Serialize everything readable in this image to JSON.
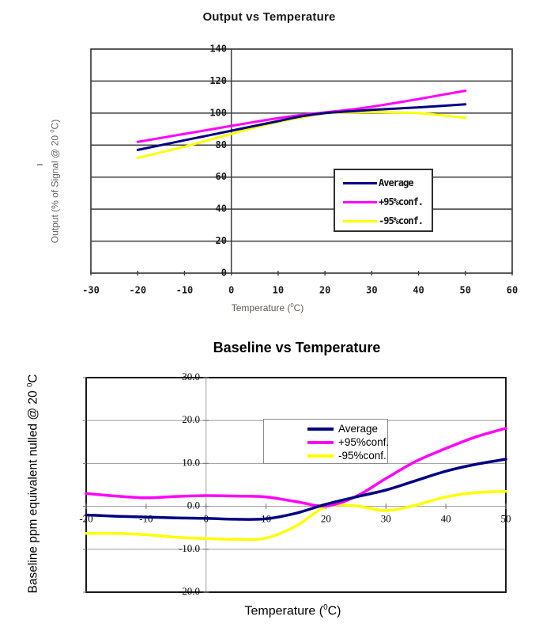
{
  "chart_data": [
    {
      "type": "line",
      "title": "Output vs Temperature",
      "xlabel": {
        "pre": "Temperature (",
        "sup": "0",
        "post": "C)"
      },
      "ylabel": {
        "pre": "Output (% of Signal @ 20 ",
        "sup": "0",
        "post": "C)"
      },
      "xlim": [
        -30,
        60
      ],
      "ylim": [
        0,
        140
      ],
      "xticks": [
        "-30",
        "-20",
        "-10",
        "0",
        "10",
        "20",
        "30",
        "40",
        "50",
        "60"
      ],
      "yticks": [
        "0",
        "20",
        "40",
        "60",
        "80",
        "100",
        "120",
        "140"
      ],
      "grid": "horizontal",
      "legend_position": "inside-right",
      "x": [
        -20,
        -15,
        -10,
        -5,
        0,
        5,
        10,
        15,
        20,
        25,
        30,
        35,
        40,
        45,
        50
      ],
      "series": [
        {
          "name": "Average",
          "color": "#000080",
          "values": [
            77,
            80,
            83,
            86,
            89,
            92,
            95,
            98,
            100,
            101,
            102,
            102.8,
            103.6,
            104.5,
            105.5
          ]
        },
        {
          "name": "+95%conf.",
          "color": "#ff00ff",
          "values": [
            82,
            84.5,
            87,
            89.5,
            92,
            94.5,
            96.8,
            98.8,
            100.4,
            102,
            104,
            106.3,
            108.8,
            111.4,
            114
          ]
        },
        {
          "name": "-95%conf.",
          "color": "#ffff00",
          "values": [
            72,
            75.5,
            79,
            83,
            87,
            91,
            94.5,
            97.3,
            99.8,
            100.4,
            100.6,
            100.4,
            100,
            98.6,
            97
          ]
        }
      ]
    },
    {
      "type": "line",
      "title": "Baseline vs Temperature",
      "xlabel": {
        "pre": "Temperature (",
        "sup": "0",
        "post": "C)"
      },
      "ylabel": {
        "pre": "Baseline ppm equivalent nulled @ 20 ",
        "sup": "0",
        "post": "C"
      },
      "xlim": [
        -20,
        50
      ],
      "ylim": [
        -20,
        30
      ],
      "xticks": [
        "-20",
        "-10",
        "0",
        "10",
        "20",
        "30",
        "40",
        "50"
      ],
      "yticks": [
        "-20.0",
        "-10.0",
        "0.0",
        "10.0",
        "20.0",
        "30.0"
      ],
      "grid": "horizontal",
      "legend_position": "inside-top",
      "x": [
        -20,
        -15,
        -10,
        -5,
        0,
        5,
        10,
        15,
        20,
        25,
        30,
        35,
        40,
        45,
        50
      ],
      "series": [
        {
          "name": "Average",
          "color": "#000080",
          "values": [
            -2.0,
            -2.3,
            -2.5,
            -2.7,
            -2.8,
            -3.0,
            -2.9,
            -1.6,
            0.5,
            2.2,
            3.8,
            6.0,
            8.2,
            9.8,
            11.0
          ]
        },
        {
          "name": "+95%conf.",
          "color": "#ff00ff",
          "values": [
            3.0,
            2.4,
            2.0,
            2.3,
            2.5,
            2.4,
            2.2,
            1.1,
            0.1,
            2.3,
            6.5,
            10.5,
            13.5,
            16.2,
            18.2
          ]
        },
        {
          "name": "-95%conf.",
          "color": "#ffff00",
          "values": [
            -6.3,
            -6.3,
            -6.6,
            -7.2,
            -7.5,
            -7.7,
            -7.4,
            -4.6,
            -0.1,
            0.1,
            -1.0,
            0.3,
            2.2,
            3.2,
            3.5
          ]
        }
      ]
    }
  ]
}
